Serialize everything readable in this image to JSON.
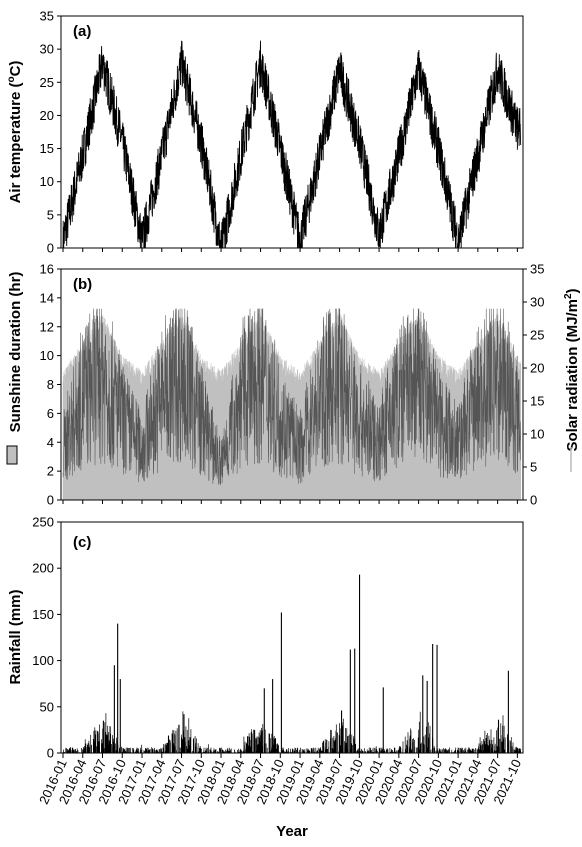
{
  "chart_data": [
    {
      "type": "line",
      "panel": "(a)",
      "ylabel_parts": [
        "Air temperature (",
        "o",
        "C)"
      ],
      "ylim": [
        0,
        35
      ],
      "yticks": [
        "0",
        "5",
        "10",
        "15",
        "20",
        "25",
        "30",
        "35"
      ],
      "xrange": [
        "2016-01",
        "2021-10"
      ],
      "series": [
        {
          "color": "#000000",
          "seasonal_monthly_means": {
            "x": [
              "2016-01",
              "2016-04",
              "2016-07",
              "2016-10",
              "2017-01",
              "2017-04",
              "2017-07",
              "2017-10",
              "2018-01",
              "2018-04",
              "2018-07",
              "2018-10",
              "2019-01",
              "2019-04",
              "2019-07",
              "2019-10",
              "2020-01",
              "2020-04",
              "2020-07",
              "2020-10",
              "2021-01",
              "2021-04",
              "2021-07",
              "2021-10"
            ],
            "y": [
              1,
              14,
              28,
              16,
              1,
              14,
              28,
              16,
              0,
              14,
              28,
              15,
              1,
              14,
              27,
              16,
              2,
              14,
              27,
              15,
              1,
              14,
              27,
              18
            ]
          }
        }
      ]
    },
    {
      "type": "area",
      "panel": "(b)",
      "ylabel_left": "Sunshine duration (hr)",
      "ylabel_right_parts": [
        "Solar radiation (MJ/m",
        "2",
        ")"
      ],
      "ylim_left": [
        0,
        16
      ],
      "yticks_left": [
        "0",
        "2",
        "4",
        "6",
        "8",
        "10",
        "12",
        "14",
        "16"
      ],
      "ylim_right": [
        0,
        35
      ],
      "yticks_right": [
        "0",
        "5",
        "10",
        "15",
        "20",
        "25",
        "30",
        "35"
      ],
      "legend_left": "grey filled box",
      "legend_right": "light grey line",
      "series": [
        {
          "name_ref": "Sunshine duration (hr)",
          "axis": "left",
          "style": "area",
          "color": "#c0c0c0",
          "seasonal_monthly_upper_envelope": {
            "x": [
              "2016-01",
              "2016-04",
              "2016-07",
              "2016-10",
              "2017-01",
              "2017-04",
              "2017-07",
              "2017-10",
              "2018-01",
              "2018-04",
              "2018-07",
              "2018-10",
              "2019-01",
              "2019-04",
              "2019-07",
              "2019-10",
              "2020-01",
              "2020-04",
              "2020-07",
              "2020-10",
              "2021-01",
              "2021-04",
              "2021-07",
              "2021-10"
            ],
            "y": [
              9,
              11,
              13,
              10,
              9,
              11,
              13,
              10,
              9,
              11,
              13,
              10,
              9,
              11,
              13,
              10,
              9,
              11,
              13,
              10,
              9,
              11,
              13,
              10
            ]
          }
        },
        {
          "name_ref": "Solar radiation (MJ/m2)",
          "axis": "right",
          "style": "line",
          "color": "#555555",
          "seasonal_monthly_means": {
            "x": [
              "2016-01",
              "2016-04",
              "2016-07",
              "2016-10",
              "2017-01",
              "2017-04",
              "2017-07",
              "2017-10",
              "2018-01",
              "2018-04",
              "2018-07",
              "2018-10",
              "2019-01",
              "2019-04",
              "2019-07",
              "2019-10",
              "2020-01",
              "2020-04",
              "2020-07",
              "2020-10",
              "2021-01",
              "2021-04",
              "2021-07",
              "2021-10"
            ],
            "y": [
              9,
              18,
              22,
              14,
              9,
              18,
              22,
              14,
              6,
              18,
              22,
              14,
              9,
              18,
              21,
              14,
              10,
              18,
              21,
              14,
              10,
              18,
              22,
              15
            ]
          }
        }
      ]
    },
    {
      "type": "bar",
      "panel": "(c)",
      "ylabel": "Rainfall (mm)",
      "xlabel": "Year",
      "ylim": [
        0,
        250
      ],
      "yticks": [
        "0",
        "50",
        "100",
        "150",
        "200",
        "250"
      ],
      "xticks": [
        "2016-01",
        "2016-04",
        "2016-07",
        "2016-10",
        "2017-01",
        "2017-04",
        "2017-07",
        "2017-10",
        "2018-01",
        "2018-04",
        "2018-07",
        "2018-10",
        "2019-01",
        "2019-04",
        "2019-07",
        "2019-10",
        "2020-01",
        "2020-04",
        "2020-07",
        "2020-10",
        "2021-01",
        "2021-04",
        "2021-07",
        "2021-10"
      ],
      "series": [
        {
          "color": "#000000",
          "notable_events": {
            "x": [
              "2016-07-05",
              "2016-08-25",
              "2016-09-10",
              "2016-09-22",
              "2017-07-12",
              "2018-07-18",
              "2018-08-26",
              "2018-10-06",
              "2019-07-10",
              "2019-08-20",
              "2019-09-10",
              "2019-10-02",
              "2020-01-20",
              "2020-07-20",
              "2020-08-10",
              "2020-09-05",
              "2020-09-25",
              "2021-07-05",
              "2021-08-20"
            ],
            "y": [
              35,
              95,
              140,
              80,
              42,
              70,
              80,
              152,
              46,
              112,
              113,
              193,
              71,
              84,
              78,
              118,
              117,
              36,
              89
            ]
          },
          "daily_background": "many small daily bars below ~40 mm"
        }
      ]
    }
  ]
}
